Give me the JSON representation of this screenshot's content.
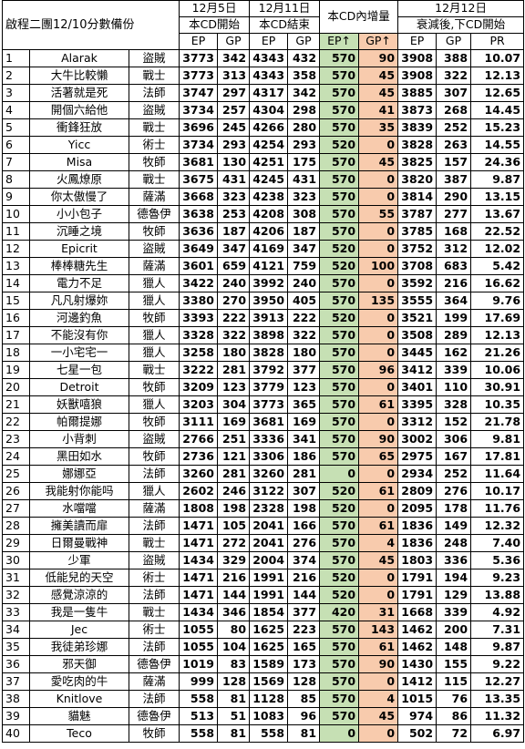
{
  "title": "啟程二團12/10分數備份",
  "headers": {
    "dec5": "12月5日",
    "dec11": "12月11日",
    "increase": "本CD內增量",
    "dec12": "12月12日",
    "cd_start": "本CD開始",
    "cd_end": "本CD結束",
    "decay_next": "衰減後,下CD開始",
    "ep": "EP",
    "gp": "GP",
    "ep_up": "EP↑",
    "gp_up": "GP↑",
    "pr": "PR"
  },
  "colors": {
    "increase_ep_bg": "#c6e0b4",
    "increase_gp_bg": "#f8cbad"
  },
  "rows": [
    {
      "idx": "1",
      "name": "Alarak",
      "cls": "盜賊",
      "ep1": "3773",
      "gp1": "342",
      "ep2": "4343",
      "gp2": "432",
      "epu": "570",
      "gpu": "90",
      "ep3": "3908",
      "gp3": "388",
      "pr": "10.07"
    },
    {
      "idx": "2",
      "name": "大牛比較懶",
      "cls": "戰士",
      "ep1": "3773",
      "gp1": "313",
      "ep2": "4343",
      "gp2": "358",
      "epu": "570",
      "gpu": "45",
      "ep3": "3908",
      "gp3": "322",
      "pr": "12.13"
    },
    {
      "idx": "3",
      "name": "活著就是死",
      "cls": "法師",
      "ep1": "3747",
      "gp1": "297",
      "ep2": "4317",
      "gp2": "342",
      "epu": "570",
      "gpu": "45",
      "ep3": "3885",
      "gp3": "307",
      "pr": "12.65"
    },
    {
      "idx": "4",
      "name": "開個六給他",
      "cls": "盜賊",
      "ep1": "3734",
      "gp1": "257",
      "ep2": "4304",
      "gp2": "298",
      "epu": "570",
      "gpu": "41",
      "ep3": "3873",
      "gp3": "268",
      "pr": "14.45"
    },
    {
      "idx": "5",
      "name": "衝鋒狂放",
      "cls": "戰士",
      "ep1": "3696",
      "gp1": "245",
      "ep2": "4266",
      "gp2": "280",
      "epu": "570",
      "gpu": "35",
      "ep3": "3839",
      "gp3": "252",
      "pr": "15.23"
    },
    {
      "idx": "6",
      "name": "Yicc",
      "cls": "術士",
      "ep1": "3734",
      "gp1": "293",
      "ep2": "4254",
      "gp2": "293",
      "epu": "520",
      "gpu": "0",
      "ep3": "3828",
      "gp3": "263",
      "pr": "14.55"
    },
    {
      "idx": "7",
      "name": "Misa",
      "cls": "牧師",
      "ep1": "3681",
      "gp1": "130",
      "ep2": "4251",
      "gp2": "175",
      "epu": "570",
      "gpu": "45",
      "ep3": "3825",
      "gp3": "157",
      "pr": "24.36"
    },
    {
      "idx": "8",
      "name": "火鳳燎原",
      "cls": "戰士",
      "ep1": "3675",
      "gp1": "431",
      "ep2": "4245",
      "gp2": "431",
      "epu": "570",
      "gpu": "0",
      "ep3": "3820",
      "gp3": "387",
      "pr": "9.87"
    },
    {
      "idx": "9",
      "name": "你太傲慢了",
      "cls": "薩滿",
      "ep1": "3668",
      "gp1": "323",
      "ep2": "4238",
      "gp2": "323",
      "epu": "570",
      "gpu": "0",
      "ep3": "3814",
      "gp3": "290",
      "pr": "13.15"
    },
    {
      "idx": "10",
      "name": "小小包子",
      "cls": "德魯伊",
      "ep1": "3638",
      "gp1": "253",
      "ep2": "4208",
      "gp2": "308",
      "epu": "570",
      "gpu": "55",
      "ep3": "3787",
      "gp3": "277",
      "pr": "13.67"
    },
    {
      "idx": "11",
      "name": "沉睡之境",
      "cls": "牧師",
      "ep1": "3636",
      "gp1": "187",
      "ep2": "4206",
      "gp2": "187",
      "epu": "570",
      "gpu": "0",
      "ep3": "3785",
      "gp3": "168",
      "pr": "22.52"
    },
    {
      "idx": "12",
      "name": "Epicrit",
      "cls": "盜賊",
      "ep1": "3649",
      "gp1": "347",
      "ep2": "4169",
      "gp2": "347",
      "epu": "520",
      "gpu": "0",
      "ep3": "3752",
      "gp3": "312",
      "pr": "12.02"
    },
    {
      "idx": "13",
      "name": "棒棒糖先生",
      "cls": "薩滿",
      "ep1": "3601",
      "gp1": "659",
      "ep2": "4121",
      "gp2": "759",
      "epu": "520",
      "gpu": "100",
      "ep3": "3708",
      "gp3": "683",
      "pr": "5.42"
    },
    {
      "idx": "14",
      "name": "電力不足",
      "cls": "獵人",
      "ep1": "3422",
      "gp1": "240",
      "ep2": "3992",
      "gp2": "240",
      "epu": "570",
      "gpu": "0",
      "ep3": "3592",
      "gp3": "216",
      "pr": "16.62"
    },
    {
      "idx": "15",
      "name": "凡凡射爆妳",
      "cls": "獵人",
      "ep1": "3380",
      "gp1": "270",
      "ep2": "3950",
      "gp2": "405",
      "epu": "570",
      "gpu": "135",
      "ep3": "3555",
      "gp3": "364",
      "pr": "9.76"
    },
    {
      "idx": "16",
      "name": "河邊釣魚",
      "cls": "牧師",
      "ep1": "3393",
      "gp1": "222",
      "ep2": "3913",
      "gp2": "222",
      "epu": "520",
      "gpu": "0",
      "ep3": "3521",
      "gp3": "199",
      "pr": "17.69"
    },
    {
      "idx": "17",
      "name": "不能沒有你",
      "cls": "獵人",
      "ep1": "3328",
      "gp1": "322",
      "ep2": "3898",
      "gp2": "322",
      "epu": "570",
      "gpu": "0",
      "ep3": "3508",
      "gp3": "289",
      "pr": "12.13"
    },
    {
      "idx": "18",
      "name": "一小宅宅一",
      "cls": "獵人",
      "ep1": "3258",
      "gp1": "180",
      "ep2": "3828",
      "gp2": "180",
      "epu": "570",
      "gpu": "0",
      "ep3": "3445",
      "gp3": "162",
      "pr": "21.26"
    },
    {
      "idx": "19",
      "name": "七星一包",
      "cls": "戰士",
      "ep1": "3222",
      "gp1": "281",
      "ep2": "3792",
      "gp2": "377",
      "epu": "570",
      "gpu": "96",
      "ep3": "3412",
      "gp3": "339",
      "pr": "10.06"
    },
    {
      "idx": "20",
      "name": "Detroit",
      "cls": "牧師",
      "ep1": "3209",
      "gp1": "123",
      "ep2": "3779",
      "gp2": "123",
      "epu": "570",
      "gpu": "0",
      "ep3": "3401",
      "gp3": "110",
      "pr": "30.91"
    },
    {
      "idx": "21",
      "name": "妖獸嘻狼",
      "cls": "獵人",
      "ep1": "3203",
      "gp1": "304",
      "ep2": "3773",
      "gp2": "365",
      "epu": "570",
      "gpu": "61",
      "ep3": "3395",
      "gp3": "328",
      "pr": "10.35"
    },
    {
      "idx": "22",
      "name": "帕爾提娜",
      "cls": "牧師",
      "ep1": "3111",
      "gp1": "169",
      "ep2": "3681",
      "gp2": "169",
      "epu": "570",
      "gpu": "0",
      "ep3": "3312",
      "gp3": "152",
      "pr": "21.78"
    },
    {
      "idx": "23",
      "name": "小背刺",
      "cls": "盜賊",
      "ep1": "2766",
      "gp1": "251",
      "ep2": "3336",
      "gp2": "341",
      "epu": "570",
      "gpu": "90",
      "ep3": "3002",
      "gp3": "306",
      "pr": "9.81"
    },
    {
      "idx": "24",
      "name": "黑田如水",
      "cls": "牧師",
      "ep1": "2736",
      "gp1": "121",
      "ep2": "3306",
      "gp2": "186",
      "epu": "570",
      "gpu": "65",
      "ep3": "2975",
      "gp3": "167",
      "pr": "17.81"
    },
    {
      "idx": "25",
      "name": "娜娜亞",
      "cls": "法師",
      "ep1": "3260",
      "gp1": "281",
      "ep2": "3260",
      "gp2": "281",
      "epu": "0",
      "gpu": "0",
      "ep3": "2934",
      "gp3": "252",
      "pr": "11.64"
    },
    {
      "idx": "26",
      "name": "我能射你能吗",
      "cls": "獵人",
      "ep1": "2602",
      "gp1": "246",
      "ep2": "3122",
      "gp2": "307",
      "epu": "520",
      "gpu": "61",
      "ep3": "2809",
      "gp3": "276",
      "pr": "10.17"
    },
    {
      "idx": "27",
      "name": "水噹噹",
      "cls": "薩滿",
      "ep1": "1808",
      "gp1": "198",
      "ep2": "2328",
      "gp2": "198",
      "epu": "520",
      "gpu": "0",
      "ep3": "2095",
      "gp3": "178",
      "pr": "11.76"
    },
    {
      "idx": "28",
      "name": "擁美讀而扉",
      "cls": "法師",
      "ep1": "1471",
      "gp1": "105",
      "ep2": "2041",
      "gp2": "166",
      "epu": "570",
      "gpu": "61",
      "ep3": "1836",
      "gp3": "149",
      "pr": "12.32"
    },
    {
      "idx": "29",
      "name": "日爾曼戰神",
      "cls": "戰士",
      "ep1": "1471",
      "gp1": "272",
      "ep2": "2041",
      "gp2": "276",
      "epu": "570",
      "gpu": "4",
      "ep3": "1836",
      "gp3": "248",
      "pr": "7.40"
    },
    {
      "idx": "30",
      "name": "少軍",
      "cls": "盜賊",
      "ep1": "1434",
      "gp1": "329",
      "ep2": "2004",
      "gp2": "374",
      "epu": "570",
      "gpu": "45",
      "ep3": "1803",
      "gp3": "336",
      "pr": "5.36"
    },
    {
      "idx": "31",
      "name": "低能兒的天空",
      "cls": "術士",
      "ep1": "1471",
      "gp1": "216",
      "ep2": "1991",
      "gp2": "216",
      "epu": "520",
      "gpu": "0",
      "ep3": "1791",
      "gp3": "194",
      "pr": "9.23"
    },
    {
      "idx": "32",
      "name": "感覺涼涼的",
      "cls": "法師",
      "ep1": "1471",
      "gp1": "144",
      "ep2": "1991",
      "gp2": "144",
      "epu": "520",
      "gpu": "0",
      "ep3": "1791",
      "gp3": "129",
      "pr": "13.88"
    },
    {
      "idx": "33",
      "name": "我是一隻牛",
      "cls": "戰士",
      "ep1": "1434",
      "gp1": "346",
      "ep2": "1854",
      "gp2": "377",
      "epu": "420",
      "gpu": "31",
      "ep3": "1668",
      "gp3": "339",
      "pr": "4.92"
    },
    {
      "idx": "34",
      "name": "Jec",
      "cls": "術士",
      "ep1": "1055",
      "gp1": "80",
      "ep2": "1625",
      "gp2": "223",
      "epu": "570",
      "gpu": "143",
      "ep3": "1462",
      "gp3": "200",
      "pr": "7.31"
    },
    {
      "idx": "35",
      "name": "我徒弟珍娜",
      "cls": "法師",
      "ep1": "1055",
      "gp1": "104",
      "ep2": "1625",
      "gp2": "165",
      "epu": "570",
      "gpu": "61",
      "ep3": "1462",
      "gp3": "148",
      "pr": "9.87"
    },
    {
      "idx": "36",
      "name": "邪天御",
      "cls": "德魯伊",
      "ep1": "1019",
      "gp1": "83",
      "ep2": "1589",
      "gp2": "173",
      "epu": "570",
      "gpu": "90",
      "ep3": "1430",
      "gp3": "155",
      "pr": "9.22"
    },
    {
      "idx": "37",
      "name": "愛吃肉的牛",
      "cls": "薩滿",
      "ep1": "999",
      "gp1": "128",
      "ep2": "1569",
      "gp2": "128",
      "epu": "570",
      "gpu": "0",
      "ep3": "1412",
      "gp3": "115",
      "pr": "12.27"
    },
    {
      "idx": "38",
      "name": "Knitlove",
      "cls": "法師",
      "ep1": "558",
      "gp1": "81",
      "ep2": "1128",
      "gp2": "85",
      "epu": "570",
      "gpu": "4",
      "ep3": "1015",
      "gp3": "76",
      "pr": "13.35"
    },
    {
      "idx": "39",
      "name": "貓魅",
      "cls": "德魯伊",
      "ep1": "513",
      "gp1": "51",
      "ep2": "1083",
      "gp2": "96",
      "epu": "570",
      "gpu": "45",
      "ep3": "974",
      "gp3": "86",
      "pr": "11.32"
    },
    {
      "idx": "40",
      "name": "Teco",
      "cls": "牧師",
      "ep1": "558",
      "gp1": "81",
      "ep2": "558",
      "gp2": "81",
      "epu": "0",
      "gpu": "0",
      "ep3": "502",
      "gp3": "72",
      "pr": "6.97"
    }
  ]
}
